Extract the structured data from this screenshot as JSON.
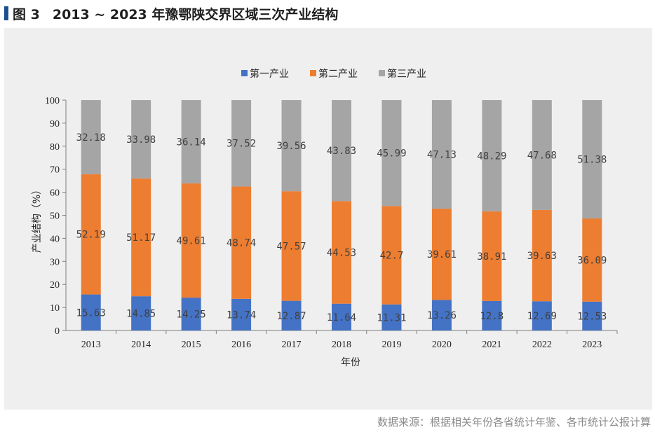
{
  "figure": {
    "number": "图 3",
    "title": "2013 ~ 2023 年豫鄂陕交界区域三次产业结构",
    "source": "数据来源：根据相关年份各省统计年鉴、各市统计公报计算"
  },
  "chart_data": {
    "type": "bar",
    "stacked": true,
    "xlabel": "年份",
    "ylabel": "产业结构（%）",
    "ylim": [
      0,
      100
    ],
    "yticks": [
      0,
      10,
      20,
      30,
      40,
      50,
      60,
      70,
      80,
      90,
      100
    ],
    "legend_position": "top",
    "grid": false,
    "categories": [
      "2013",
      "2014",
      "2015",
      "2016",
      "2017",
      "2018",
      "2019",
      "2020",
      "2021",
      "2022",
      "2023"
    ],
    "series": [
      {
        "name": "第一产业",
        "color": "#4472c4",
        "values": [
          15.63,
          14.85,
          14.25,
          13.74,
          12.87,
          11.64,
          11.31,
          13.26,
          12.8,
          12.69,
          12.53
        ],
        "labels": [
          "15.63",
          "14.85",
          "14.25",
          "13.74",
          "12.87",
          "11.64",
          "11.31",
          "13.26",
          "12.8",
          "12.69",
          "12.53"
        ]
      },
      {
        "name": "第二产业",
        "color": "#ed7d31",
        "values": [
          52.19,
          51.17,
          49.61,
          48.74,
          47.57,
          44.53,
          42.7,
          39.61,
          38.91,
          39.63,
          36.09
        ],
        "labels": [
          "52.19",
          "51.17",
          "49.61",
          "48.74",
          "47.57",
          "44.53",
          "42.7",
          "39.61",
          "38.91",
          "39.63",
          "36.09"
        ]
      },
      {
        "name": "第三产业",
        "color": "#a5a5a5",
        "values": [
          32.18,
          33.98,
          36.14,
          37.52,
          39.56,
          43.83,
          45.99,
          47.13,
          48.29,
          47.68,
          51.38
        ],
        "labels": [
          "32.18",
          "33.98",
          "36.14",
          "37.52",
          "39.56",
          "43.83",
          "45.99",
          "47.13",
          "48.29",
          "47.68",
          "51.38"
        ]
      }
    ]
  }
}
